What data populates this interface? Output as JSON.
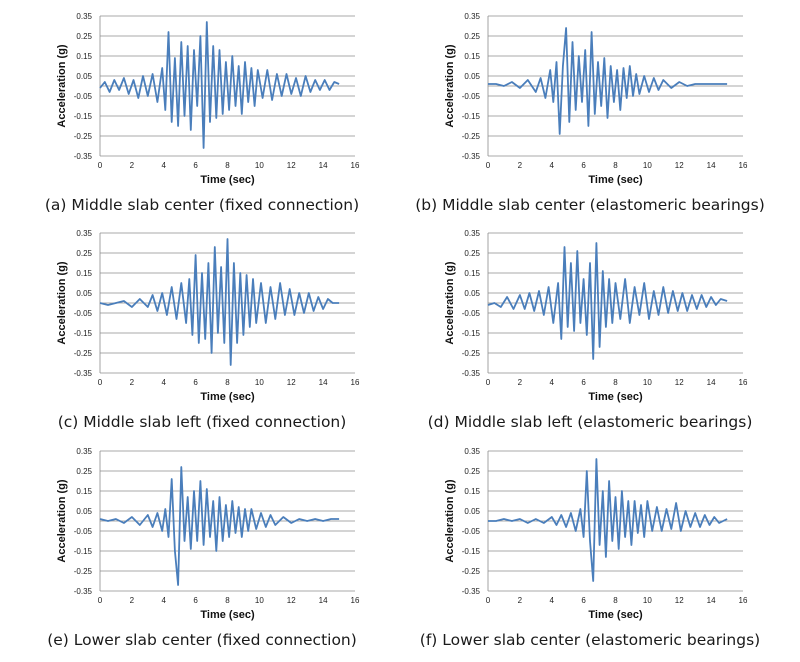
{
  "chart_data": [
    {
      "type": "line",
      "caption": "(a) Middle slab center (fixed connection)",
      "xlabel": "Time (sec)",
      "ylabel": "Acceleration (g)",
      "xlim": [
        0,
        16
      ],
      "ylim": [
        -0.35,
        0.35
      ],
      "xticks": [
        "0",
        "2",
        "4",
        "6",
        "8",
        "10",
        "12",
        "14",
        "16"
      ],
      "yticks": [
        "0.35",
        "0.25",
        "0.15",
        "0.05",
        "-0.05",
        "-0.15",
        "-0.25",
        "-0.35"
      ],
      "grid": true,
      "color": "#4a7ebb",
      "series": [
        {
          "x": [
            0,
            0.3,
            0.6,
            0.9,
            1.2,
            1.5,
            1.8,
            2.1,
            2.4,
            2.7,
            3.0,
            3.3,
            3.6,
            3.9,
            4.1,
            4.3,
            4.5,
            4.7,
            4.9,
            5.1,
            5.3,
            5.5,
            5.7,
            5.9,
            6.1,
            6.3,
            6.5,
            6.7,
            6.9,
            7.1,
            7.3,
            7.5,
            7.7,
            7.9,
            8.1,
            8.3,
            8.5,
            8.7,
            8.9,
            9.1,
            9.3,
            9.5,
            9.7,
            9.9,
            10.2,
            10.5,
            10.8,
            11.1,
            11.4,
            11.7,
            12.0,
            12.3,
            12.6,
            12.9,
            13.2,
            13.5,
            13.8,
            14.1,
            14.4,
            14.7,
            15.0
          ],
          "y": [
            -0.01,
            0.02,
            -0.03,
            0.03,
            -0.02,
            0.04,
            -0.04,
            0.03,
            -0.06,
            0.05,
            -0.05,
            0.06,
            -0.08,
            0.09,
            -0.12,
            0.27,
            -0.18,
            0.14,
            -0.2,
            0.22,
            -0.15,
            0.2,
            -0.22,
            0.18,
            -0.1,
            0.25,
            -0.31,
            0.32,
            -0.18,
            0.2,
            -0.16,
            0.18,
            -0.14,
            0.12,
            -0.12,
            0.15,
            -0.1,
            0.1,
            -0.14,
            0.12,
            -0.08,
            0.09,
            -0.1,
            0.08,
            -0.06,
            0.08,
            -0.07,
            0.06,
            -0.05,
            0.06,
            -0.04,
            0.04,
            -0.05,
            0.05,
            -0.03,
            0.03,
            -0.02,
            0.03,
            -0.02,
            0.02,
            0.01
          ]
        }
      ]
    },
    {
      "type": "line",
      "caption": "(b) Middle slab center (elastomeric bearings)",
      "xlabel": "Time (sec)",
      "ylabel": "Acceleration (g)",
      "xlim": [
        0,
        16
      ],
      "ylim": [
        -0.35,
        0.35
      ],
      "xticks": [
        "0",
        "2",
        "4",
        "6",
        "8",
        "10",
        "12",
        "14",
        "16"
      ],
      "yticks": [
        "0.35",
        "0.25",
        "0.15",
        "0.05",
        "-0.05",
        "-0.15",
        "-0.25",
        "-0.35"
      ],
      "grid": true,
      "color": "#4a7ebb",
      "series": [
        {
          "x": [
            0,
            0.5,
            1.0,
            1.5,
            2.0,
            2.5,
            3.0,
            3.3,
            3.6,
            3.9,
            4.1,
            4.3,
            4.5,
            4.7,
            4.9,
            5.1,
            5.3,
            5.5,
            5.7,
            5.9,
            6.1,
            6.3,
            6.5,
            6.7,
            6.9,
            7.1,
            7.3,
            7.5,
            7.7,
            7.9,
            8.1,
            8.3,
            8.5,
            8.7,
            8.9,
            9.1,
            9.3,
            9.5,
            9.8,
            10.1,
            10.4,
            10.7,
            11.0,
            11.5,
            12.0,
            12.5,
            13.0,
            13.5,
            14.0,
            14.5,
            15.0
          ],
          "y": [
            0.01,
            0.01,
            0.0,
            0.02,
            -0.01,
            0.03,
            -0.03,
            0.04,
            -0.06,
            0.08,
            -0.08,
            0.12,
            -0.24,
            0.1,
            0.29,
            -0.18,
            0.22,
            -0.12,
            0.15,
            -0.08,
            0.18,
            -0.2,
            0.27,
            -0.14,
            0.12,
            -0.1,
            0.14,
            -0.16,
            0.1,
            -0.08,
            0.08,
            -0.12,
            0.09,
            -0.06,
            0.1,
            -0.05,
            0.06,
            -0.04,
            0.05,
            -0.03,
            0.04,
            -0.02,
            0.03,
            -0.01,
            0.02,
            0.0,
            0.01,
            0.01,
            0.01,
            0.01,
            0.01
          ]
        }
      ]
    },
    {
      "type": "line",
      "caption": "(c) Middle slab left (fixed connection)",
      "xlabel": "Time (sec)",
      "ylabel": "Acceleration (g)",
      "xlim": [
        0,
        16
      ],
      "ylim": [
        -0.35,
        0.35
      ],
      "xticks": [
        "0",
        "2",
        "4",
        "6",
        "8",
        "10",
        "12",
        "14",
        "16"
      ],
      "yticks": [
        "0.35",
        "0.25",
        "0.15",
        "0.05",
        "-0.05",
        "-0.15",
        "-0.25",
        "-0.35"
      ],
      "grid": true,
      "color": "#4a7ebb",
      "series": [
        {
          "x": [
            0,
            0.5,
            1.0,
            1.5,
            2.0,
            2.5,
            3.0,
            3.3,
            3.6,
            3.9,
            4.2,
            4.5,
            4.8,
            5.1,
            5.4,
            5.6,
            5.8,
            6.0,
            6.2,
            6.4,
            6.6,
            6.8,
            7.0,
            7.2,
            7.4,
            7.6,
            7.8,
            8.0,
            8.2,
            8.4,
            8.6,
            8.8,
            9.0,
            9.2,
            9.4,
            9.6,
            9.8,
            10.1,
            10.4,
            10.7,
            11.0,
            11.3,
            11.6,
            11.9,
            12.2,
            12.5,
            12.8,
            13.1,
            13.4,
            13.7,
            14.0,
            14.3,
            14.6,
            15.0
          ],
          "y": [
            0.0,
            -0.01,
            0.0,
            0.01,
            -0.02,
            0.02,
            -0.02,
            0.04,
            -0.04,
            0.05,
            -0.06,
            0.08,
            -0.08,
            0.1,
            -0.1,
            0.12,
            -0.16,
            0.24,
            -0.2,
            0.15,
            -0.18,
            0.2,
            -0.25,
            0.28,
            -0.15,
            0.18,
            -0.2,
            0.32,
            -0.31,
            0.2,
            -0.2,
            0.15,
            -0.16,
            0.14,
            -0.12,
            0.12,
            -0.1,
            0.1,
            -0.1,
            0.08,
            -0.08,
            0.1,
            -0.06,
            0.07,
            -0.06,
            0.05,
            -0.05,
            0.05,
            -0.04,
            0.03,
            -0.03,
            0.02,
            0.0,
            0.0
          ]
        }
      ]
    },
    {
      "type": "line",
      "caption": "(d) Middle slab left (elastomeric bearings)",
      "xlabel": "Time (sec)",
      "ylabel": "Acceleration (g)",
      "xlim": [
        0,
        16
      ],
      "ylim": [
        -0.35,
        0.35
      ],
      "xticks": [
        "0",
        "2",
        "4",
        "6",
        "8",
        "10",
        "12",
        "14",
        "16"
      ],
      "yticks": [
        "0.35",
        "0.25",
        "0.15",
        "0.05",
        "-0.05",
        "-0.15",
        "-0.25",
        "-0.35"
      ],
      "grid": true,
      "color": "#4a7ebb",
      "series": [
        {
          "x": [
            0,
            0.4,
            0.8,
            1.2,
            1.6,
            2.0,
            2.3,
            2.6,
            2.9,
            3.2,
            3.5,
            3.8,
            4.1,
            4.4,
            4.6,
            4.8,
            5.0,
            5.2,
            5.4,
            5.6,
            5.8,
            6.0,
            6.2,
            6.4,
            6.6,
            6.8,
            7.0,
            7.2,
            7.4,
            7.6,
            7.8,
            8.0,
            8.3,
            8.6,
            8.9,
            9.2,
            9.5,
            9.8,
            10.1,
            10.4,
            10.7,
            11.0,
            11.3,
            11.6,
            11.9,
            12.2,
            12.5,
            12.8,
            13.1,
            13.4,
            13.7,
            14.0,
            14.3,
            14.6,
            15.0
          ],
          "y": [
            -0.01,
            0.0,
            -0.02,
            0.03,
            -0.03,
            0.04,
            -0.03,
            0.05,
            -0.04,
            0.06,
            -0.06,
            0.08,
            -0.1,
            0.1,
            -0.18,
            0.28,
            -0.12,
            0.2,
            -0.14,
            0.26,
            -0.1,
            0.12,
            -0.16,
            0.2,
            -0.28,
            0.3,
            -0.22,
            0.16,
            -0.12,
            0.12,
            -0.1,
            0.1,
            -0.08,
            0.12,
            -0.1,
            0.08,
            -0.06,
            0.1,
            -0.08,
            0.06,
            -0.06,
            0.08,
            -0.05,
            0.06,
            -0.04,
            0.05,
            -0.04,
            0.04,
            -0.03,
            0.04,
            -0.02,
            0.03,
            -0.01,
            0.02,
            0.01
          ]
        }
      ]
    },
    {
      "type": "line",
      "caption": "(e) Lower slab center (fixed connection)",
      "xlabel": "Time (sec)",
      "ylabel": "Acceleration (g)",
      "xlim": [
        0,
        16
      ],
      "ylim": [
        -0.35,
        0.35
      ],
      "xticks": [
        "0",
        "2",
        "4",
        "6",
        "8",
        "10",
        "12",
        "14",
        "16"
      ],
      "yticks": [
        "0.35",
        "0.25",
        "0.15",
        "0.05",
        "-0.05",
        "-0.15",
        "-0.25",
        "-0.35"
      ],
      "grid": true,
      "color": "#4a7ebb",
      "series": [
        {
          "x": [
            0,
            0.5,
            1.0,
            1.5,
            2.0,
            2.5,
            3.0,
            3.3,
            3.6,
            3.9,
            4.1,
            4.3,
            4.5,
            4.7,
            4.9,
            5.1,
            5.3,
            5.5,
            5.7,
            5.9,
            6.1,
            6.3,
            6.5,
            6.7,
            6.9,
            7.1,
            7.3,
            7.5,
            7.7,
            7.9,
            8.1,
            8.3,
            8.5,
            8.7,
            8.9,
            9.1,
            9.3,
            9.5,
            9.8,
            10.1,
            10.4,
            10.7,
            11.0,
            11.5,
            12.0,
            12.5,
            13.0,
            13.5,
            14.0,
            14.5,
            15.0
          ],
          "y": [
            0.01,
            0.0,
            0.01,
            -0.01,
            0.02,
            -0.02,
            0.03,
            -0.03,
            0.04,
            -0.05,
            0.06,
            -0.08,
            0.21,
            -0.15,
            -0.32,
            0.27,
            -0.1,
            0.12,
            -0.14,
            0.15,
            -0.1,
            0.2,
            -0.12,
            0.16,
            -0.08,
            0.1,
            -0.15,
            0.12,
            -0.1,
            0.08,
            -0.08,
            0.1,
            -0.06,
            0.07,
            -0.08,
            0.06,
            -0.05,
            0.06,
            -0.04,
            0.04,
            -0.03,
            0.03,
            -0.02,
            0.02,
            -0.01,
            0.01,
            0.0,
            0.01,
            0.0,
            0.01,
            0.01
          ]
        }
      ]
    },
    {
      "type": "line",
      "caption": "(f) Lower slab center (elastomeric bearings)",
      "xlabel": "Time (sec)",
      "ylabel": "Acceleration (g)",
      "xlim": [
        0,
        16
      ],
      "ylim": [
        -0.35,
        0.35
      ],
      "xticks": [
        "0",
        "2",
        "4",
        "6",
        "8",
        "10",
        "12",
        "14",
        "16"
      ],
      "yticks": [
        "0.35",
        "0.25",
        "0.15",
        "0.05",
        "-0.05",
        "-0.15",
        "-0.25",
        "-0.35"
      ],
      "grid": true,
      "color": "#4a7ebb",
      "series": [
        {
          "x": [
            0,
            0.5,
            1.0,
            1.5,
            2.0,
            2.5,
            3.0,
            3.5,
            4.0,
            4.3,
            4.6,
            4.9,
            5.2,
            5.5,
            5.8,
            6.0,
            6.2,
            6.4,
            6.6,
            6.8,
            7.0,
            7.2,
            7.4,
            7.6,
            7.8,
            8.0,
            8.2,
            8.4,
            8.6,
            8.8,
            9.0,
            9.2,
            9.4,
            9.6,
            9.8,
            10.0,
            10.3,
            10.6,
            10.9,
            11.2,
            11.5,
            11.8,
            12.1,
            12.4,
            12.7,
            13.0,
            13.3,
            13.6,
            13.9,
            14.2,
            14.5,
            15.0
          ],
          "y": [
            0.0,
            0.0,
            0.01,
            0.0,
            0.01,
            -0.01,
            0.01,
            -0.01,
            0.02,
            -0.02,
            0.03,
            -0.03,
            0.04,
            -0.05,
            0.06,
            -0.08,
            0.25,
            -0.1,
            -0.3,
            0.31,
            -0.12,
            0.15,
            -0.18,
            0.2,
            -0.1,
            0.12,
            -0.14,
            0.15,
            -0.08,
            0.1,
            -0.12,
            0.1,
            -0.06,
            0.08,
            -0.08,
            0.1,
            -0.05,
            0.07,
            -0.05,
            0.06,
            -0.04,
            0.09,
            -0.05,
            0.05,
            -0.03,
            0.04,
            -0.03,
            0.03,
            -0.02,
            0.02,
            -0.01,
            0.01
          ]
        }
      ]
    }
  ]
}
